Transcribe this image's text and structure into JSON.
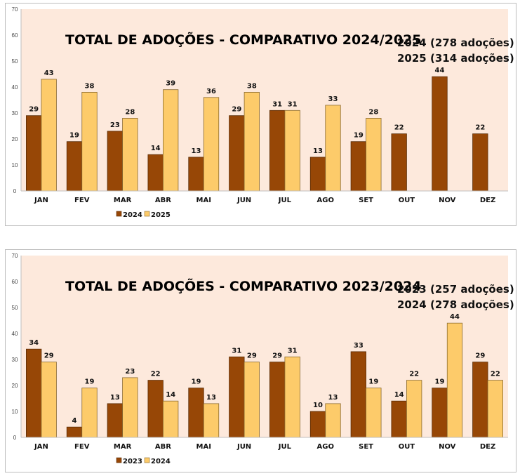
{
  "colors": {
    "plot_background": "#fde9dc",
    "series_dark": "#974706",
    "series_light": "#fdcb6a",
    "bar_outline_dark": "#5a2c05",
    "bar_outline_light": "#8a6a30",
    "axis": "#bfbfbf"
  },
  "chart_data": [
    {
      "type": "bar",
      "title": "TOTAL DE ADOÇÕES - COMPARATIVO 2024/2025",
      "annotations": [
        "2024 (278 adoções)",
        "2025 (314 adoções)"
      ],
      "xlabel": "",
      "ylabel": "",
      "ylim": [
        0,
        70
      ],
      "yticks": [
        0,
        10,
        20,
        30,
        40,
        50,
        60,
        70
      ],
      "grid": false,
      "legend_position": "bottom",
      "categories": [
        "JAN",
        "FEV",
        "MAR",
        "ABR",
        "MAI",
        "JUN",
        "JUL",
        "AGO",
        "SET",
        "OUT",
        "NOV",
        "DEZ"
      ],
      "series": [
        {
          "name": "2024",
          "color": "#974706",
          "values": [
            29,
            19,
            23,
            14,
            13,
            29,
            31,
            13,
            19,
            22,
            44,
            22
          ]
        },
        {
          "name": "2025",
          "color": "#fdcb6a",
          "values": [
            43,
            38,
            28,
            39,
            36,
            38,
            31,
            33,
            28,
            null,
            null,
            null
          ]
        }
      ]
    },
    {
      "type": "bar",
      "title": "TOTAL DE ADOÇÕES - COMPARATIVO 2023/2024",
      "annotations": [
        "2023 (257 adoções)",
        "2024 (278 adoções)"
      ],
      "xlabel": "",
      "ylabel": "",
      "ylim": [
        0,
        70
      ],
      "yticks": [
        0,
        10,
        20,
        30,
        40,
        50,
        60,
        70
      ],
      "grid": false,
      "legend_position": "bottom",
      "categories": [
        "JAN",
        "FEV",
        "MAR",
        "ABR",
        "MAI",
        "JUN",
        "JUL",
        "AGO",
        "SET",
        "OUT",
        "NOV",
        "DEZ"
      ],
      "series": [
        {
          "name": "2023",
          "color": "#974706",
          "values": [
            34,
            4,
            13,
            22,
            19,
            31,
            29,
            10,
            33,
            14,
            19,
            29
          ]
        },
        {
          "name": "2024",
          "color": "#fdcb6a",
          "values": [
            29,
            19,
            23,
            14,
            13,
            29,
            31,
            13,
            19,
            22,
            44,
            22
          ]
        }
      ]
    }
  ]
}
